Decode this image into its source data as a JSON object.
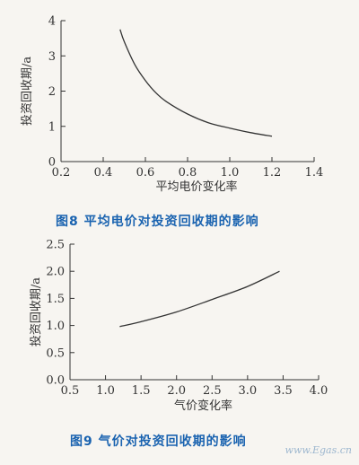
{
  "chart_data": [
    {
      "type": "line",
      "caption": "图8  平均电价对投资回收期的影响",
      "xlabel": "平均电价变化率",
      "ylabel": "投资回收期/a",
      "xlim": [
        0.2,
        1.4
      ],
      "ylim": [
        0,
        4
      ],
      "xticks": [
        "0.2",
        "0.4",
        "0.6",
        "0.8",
        "1.0",
        "1.2",
        "1.4"
      ],
      "yticks": [
        "0",
        "1",
        "2",
        "3",
        "4"
      ],
      "series": [
        {
          "x": [
            0.48,
            0.5,
            0.55,
            0.6,
            0.65,
            0.7,
            0.8,
            0.9,
            1.0,
            1.1,
            1.2
          ],
          "y": [
            3.75,
            3.4,
            2.75,
            2.3,
            1.95,
            1.7,
            1.35,
            1.1,
            0.95,
            0.82,
            0.72
          ]
        }
      ]
    },
    {
      "type": "line",
      "caption": "图9  气价对投资回收期的影响",
      "xlabel": "气价变化率",
      "ylabel": "投资回收期/a",
      "xlim": [
        0.5,
        4.0
      ],
      "ylim": [
        0,
        2.5
      ],
      "xticks": [
        "0.5",
        "1.0",
        "1.5",
        "2.0",
        "2.5",
        "3.0",
        "3.5",
        "4.0"
      ],
      "yticks": [
        "0.0",
        "0.5",
        "1.0",
        "1.5",
        "2.0",
        "2.5"
      ],
      "series": [
        {
          "x": [
            1.2,
            1.5,
            2.0,
            2.5,
            3.0,
            3.45
          ],
          "y": [
            0.98,
            1.07,
            1.25,
            1.48,
            1.72,
            2.0
          ]
        }
      ]
    }
  ],
  "watermark": "www.Egas.cn"
}
